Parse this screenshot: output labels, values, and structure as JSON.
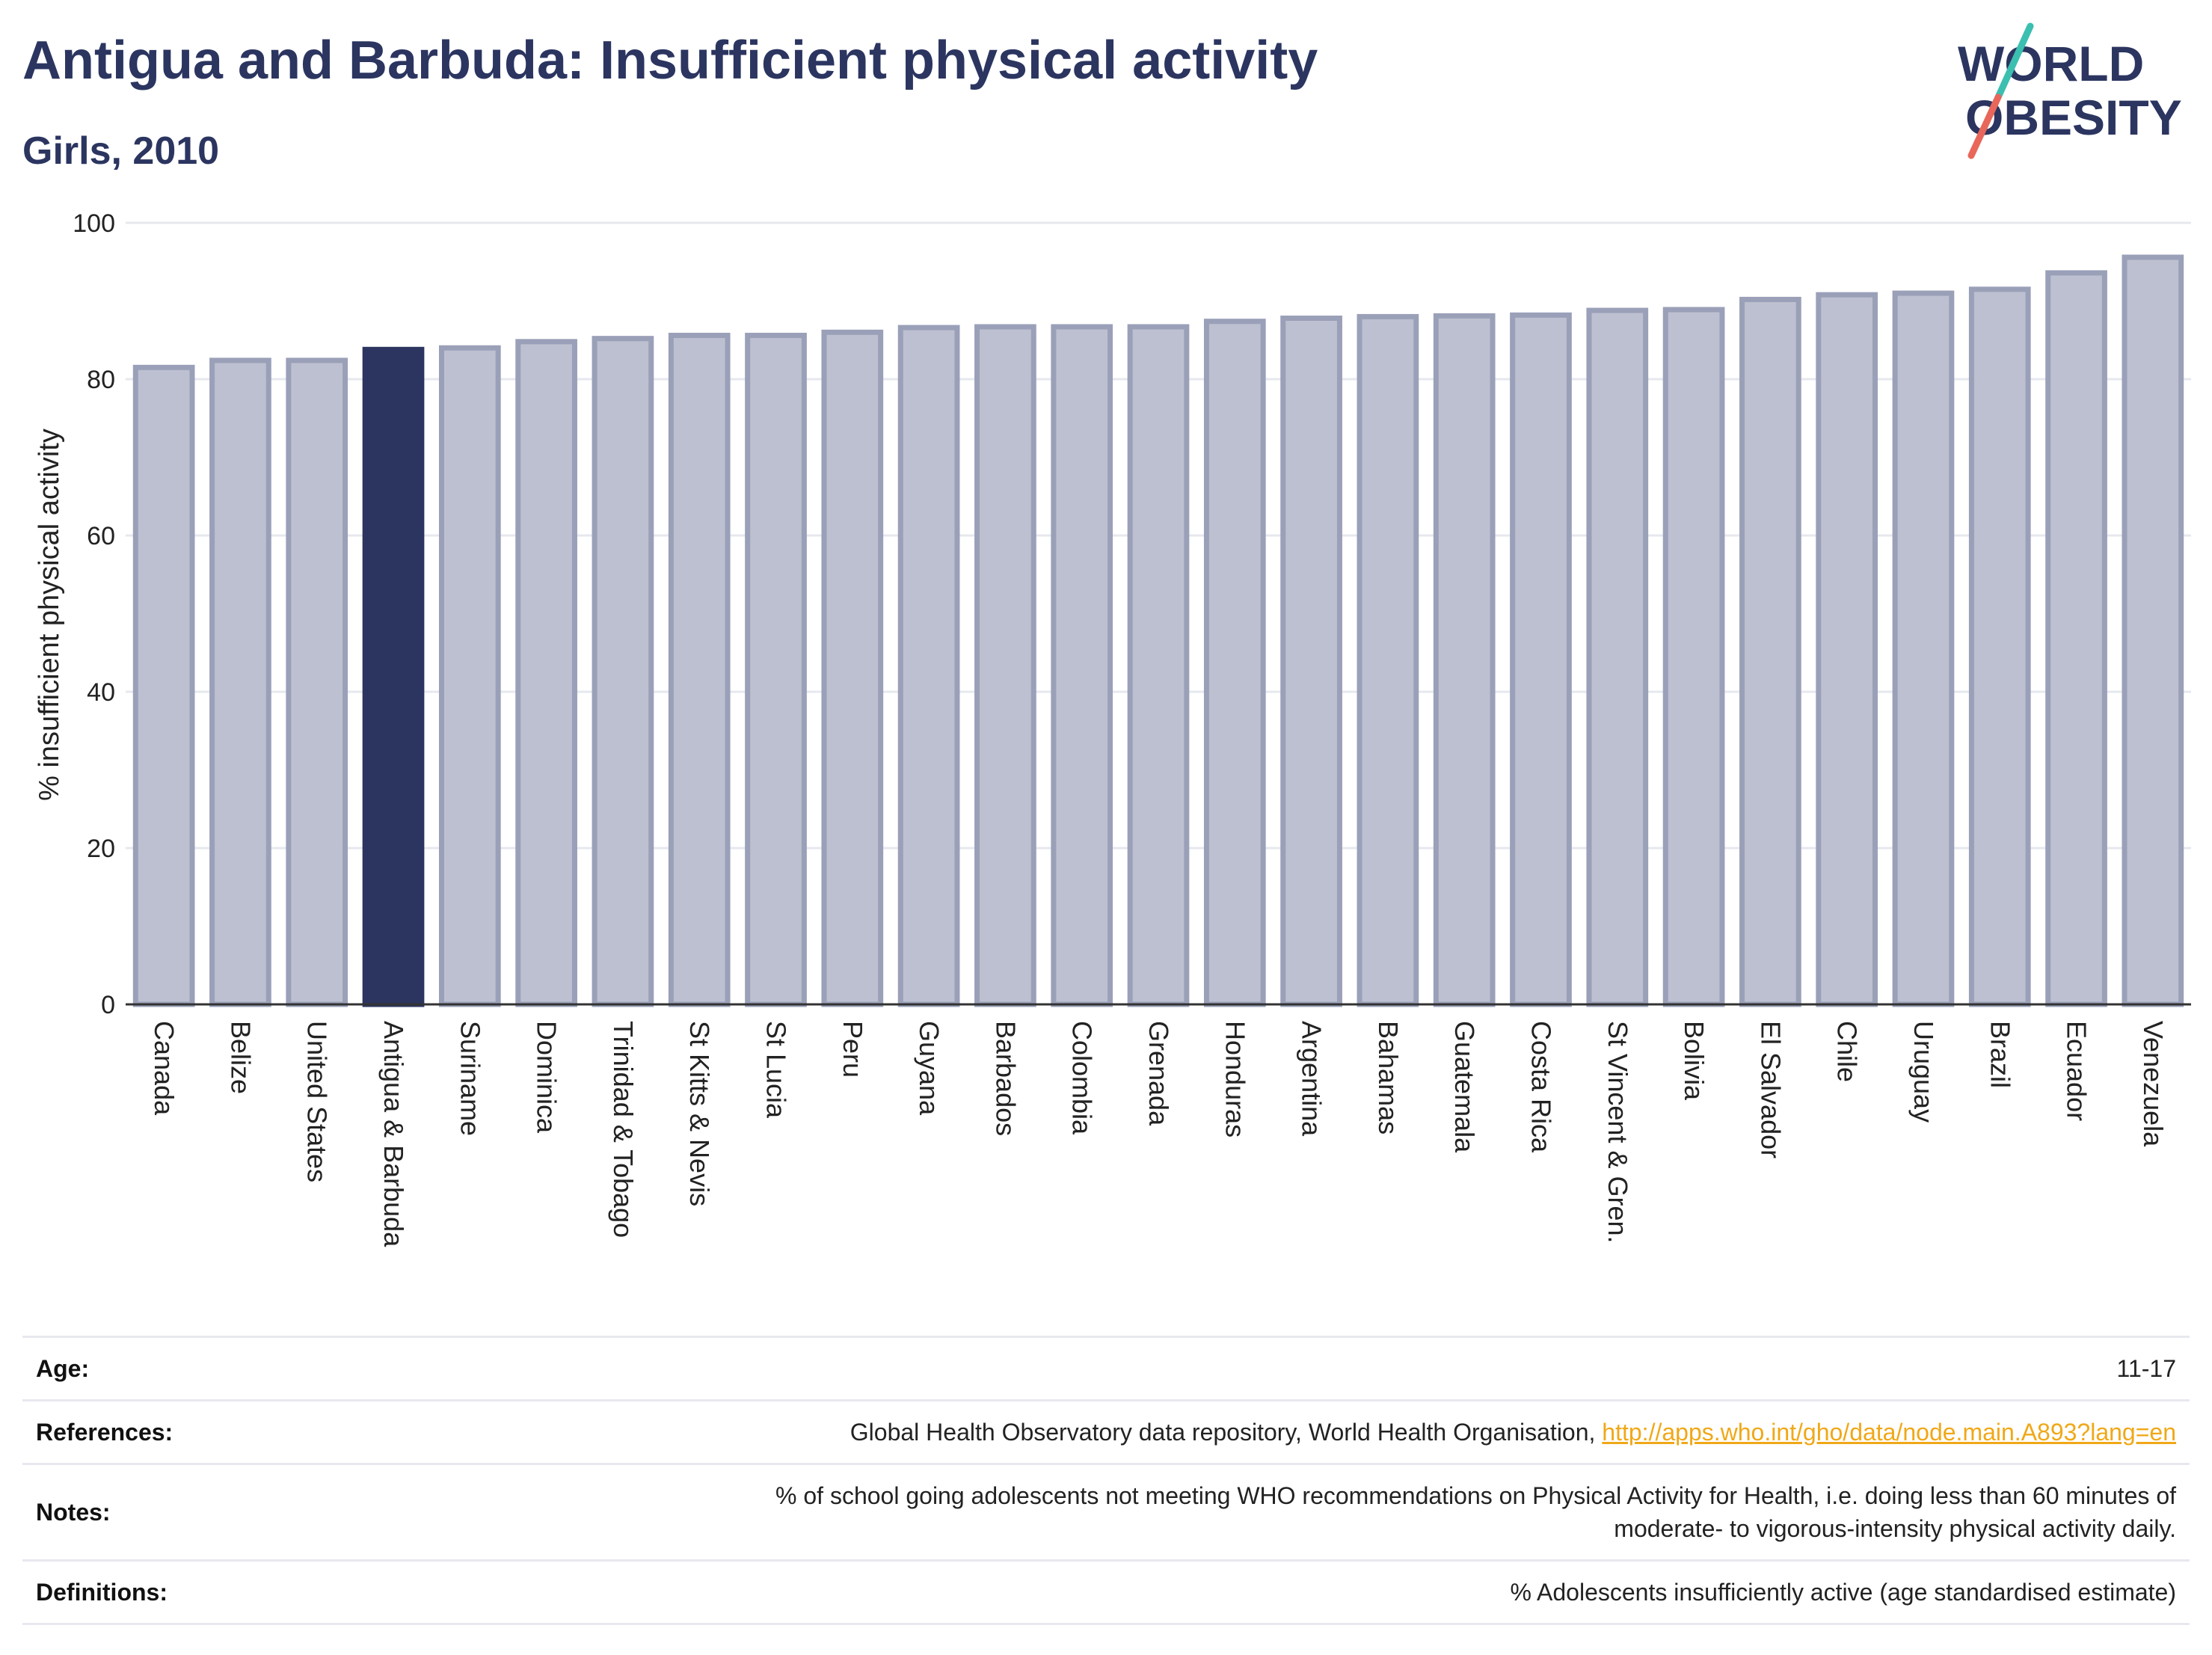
{
  "header": {
    "title": "Antigua and Barbuda: Insufficient physical activity",
    "subtitle": "Girls, 2010"
  },
  "logo": {
    "line1": "WORLD",
    "line2": "OBESITY",
    "colors": {
      "text": "#2b3560",
      "slash_teal": "#3bbfb0",
      "slash_red": "#e8675a"
    }
  },
  "chart_data": {
    "type": "bar",
    "ylabel": "% insufficient physical activity",
    "ylim": [
      0,
      100
    ],
    "yticks": [
      0,
      20,
      40,
      60,
      80,
      100
    ],
    "grid": true,
    "highlight": "Antigua & Barbuda",
    "colors": {
      "bar": "#bcc0d0",
      "bar_border": "#9aa0b8",
      "highlight": "#2b3560"
    },
    "categories": [
      "Canada",
      "Belize",
      "United States",
      "Antigua & Barbuda",
      "Suriname",
      "Dominica",
      "Trinidad & Tobago",
      "St Kitts & Nevis",
      "St Lucia",
      "Peru",
      "Guyana",
      "Barbados",
      "Colombia",
      "Grenada",
      "Honduras",
      "Argentina",
      "Bahamas",
      "Guatemala",
      "Costa Rica",
      "St Vincent & Gren.",
      "Bolivia",
      "El Salvador",
      "Chile",
      "Uruguay",
      "Brazil",
      "Ecuador",
      "Venezuela"
    ],
    "values": [
      81.5,
      82.4,
      82.4,
      83.8,
      84.0,
      84.8,
      85.2,
      85.6,
      85.6,
      86.0,
      86.6,
      86.7,
      86.7,
      86.7,
      87.4,
      87.8,
      88.0,
      88.1,
      88.2,
      88.8,
      88.9,
      90.2,
      90.8,
      91.0,
      91.5,
      93.6,
      95.6
    ]
  },
  "info": {
    "age_label": "Age:",
    "age_value": "11-17",
    "references_label": "References:",
    "references_text": "Global Health Observatory data repository, World Health Organisation, ",
    "references_link": "http://apps.who.int/gho/data/node.main.A893?lang=en",
    "notes_label": "Notes:",
    "notes_line1": "% of school going adolescents not meeting WHO recommendations on Physical Activity for Health, i.e. doing less than 60 minutes of",
    "notes_line2": "moderate- to vigorous-intensity physical activity daily.",
    "definitions_label": "Definitions:",
    "definitions_value": "% Adolescents insufficiently active (age standardised estimate)"
  }
}
